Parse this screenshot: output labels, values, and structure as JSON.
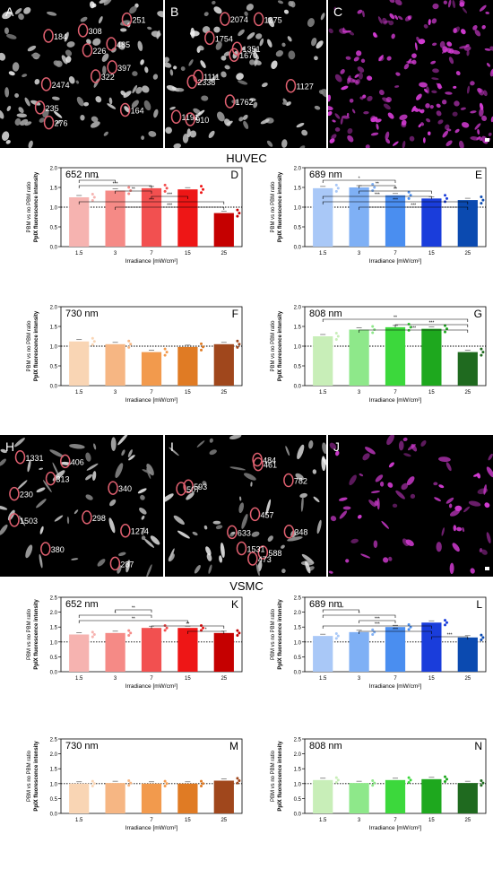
{
  "figure": {
    "top_row": {
      "panels": [
        {
          "letter": "A",
          "ids": [
            "308",
            "226",
            "2474",
            "276",
            "184",
            "397",
            "235",
            "251",
            "485",
            "322",
            "164"
          ]
        },
        {
          "letter": "B",
          "ids": [
            "2074",
            "1351",
            "1127",
            "1191",
            "1754",
            "1111",
            "1762",
            "1275",
            "1670",
            "2338",
            "910"
          ]
        },
        {
          "letter": "C",
          "ids": []
        }
      ],
      "group_label": "HUVEC"
    },
    "bottom_row": {
      "panels": [
        {
          "letter": "H",
          "ids": [
            "406",
            "230",
            "1274",
            "287",
            "313",
            "298",
            "380",
            "1331",
            "340",
            "1503"
          ]
        },
        {
          "letter": "I",
          "ids": [
            "484",
            "593",
            "348",
            "588",
            "782",
            "457",
            "1531",
            "461",
            "507",
            "633",
            "473"
          ]
        },
        {
          "letter": "J",
          "ids": []
        }
      ],
      "group_label": "VSMC"
    },
    "colors": {
      "marker_outline": "#e06070",
      "fluorescence": "#d23bd2"
    }
  },
  "chart_data": [
    {
      "panel": "D",
      "type": "bar",
      "title": "652 nm",
      "categories": [
        "1.5",
        "3",
        "7",
        "15",
        "25"
      ],
      "values": [
        1.25,
        1.42,
        1.48,
        1.45,
        0.85
      ],
      "colors": [
        "#f6b3b0",
        "#f58a86",
        "#f25050",
        "#ee1616",
        "#c50000"
      ],
      "ylim": [
        0,
        2.0
      ],
      "yticks": [
        "0.0",
        "0.5",
        "1.0",
        "1.5",
        "2.0"
      ],
      "ylabel": "PBM vs no PBM ratio",
      "ylabel_bold": "PpIX fluorescence intensity",
      "xlabel": "Irradiance [mW/cm²]",
      "brackets": [
        [
          "1.5",
          "3",
          "**"
        ],
        [
          "1.5",
          "7",
          "***"
        ],
        [
          "3",
          "7",
          "**"
        ],
        [
          "7",
          "15",
          "***"
        ],
        [
          "1.5",
          "25",
          "***"
        ],
        [
          "3",
          "25",
          "***"
        ]
      ]
    },
    {
      "panel": "E",
      "type": "bar",
      "title": "689 nm",
      "categories": [
        "1.5",
        "3",
        "7",
        "15",
        "25"
      ],
      "values": [
        1.48,
        1.5,
        1.3,
        1.22,
        1.18
      ],
      "colors": [
        "#a9c8f7",
        "#7fb0f5",
        "#4a8ef0",
        "#1a3ddb",
        "#0b4ab0"
      ],
      "ylim": [
        0,
        2.0
      ],
      "yticks": [
        "0.0",
        "0.5",
        "1.0",
        "1.5",
        "2.0"
      ],
      "ylabel": "PBM vs no PBM ratio",
      "ylabel_bold": "PpIX fluorescence intensity",
      "xlabel": "Irradiance [mW/cm²]",
      "brackets": [
        [
          "1.5",
          "7",
          "*"
        ],
        [
          "3",
          "7",
          "**"
        ],
        [
          "3",
          "15",
          "**"
        ],
        [
          "1.5",
          "15",
          "***"
        ],
        [
          "1.5",
          "25",
          "***"
        ],
        [
          "3",
          "25",
          "***"
        ]
      ]
    },
    {
      "panel": "F",
      "type": "bar",
      "title": "730 nm",
      "categories": [
        "1.5",
        "3",
        "7",
        "15",
        "25"
      ],
      "values": [
        1.12,
        1.05,
        0.85,
        0.98,
        1.05
      ],
      "colors": [
        "#f9d5b4",
        "#f6b683",
        "#f29a4d",
        "#e07b24",
        "#a0471c"
      ],
      "ylim": [
        0,
        2.0
      ],
      "yticks": [
        "0.0",
        "0.5",
        "1.0",
        "1.5",
        "2.0"
      ],
      "ylabel": "PBM vs no PBM ratio",
      "ylabel_bold": "PpIX fluorescence intensity",
      "xlabel": "Irradiance [mW/cm²]",
      "brackets": []
    },
    {
      "panel": "G",
      "type": "bar",
      "title": "808 nm",
      "categories": [
        "1.5",
        "3",
        "7",
        "15",
        "25"
      ],
      "values": [
        1.25,
        1.42,
        1.48,
        1.44,
        0.85
      ],
      "colors": [
        "#c8eeb8",
        "#8ee88a",
        "#3cd83c",
        "#1ea81e",
        "#1f6a1f"
      ],
      "ylim": [
        0,
        2.0
      ],
      "yticks": [
        "0.0",
        "0.5",
        "1.0",
        "1.5",
        "2.0"
      ],
      "ylabel": "PBM vs no PBM ratio",
      "ylabel_bold": "PpIX fluorescence intensity",
      "xlabel": "Irradiance [mW/cm²]",
      "brackets": [
        [
          "1.5",
          "25",
          "**"
        ],
        [
          "7",
          "25",
          "***"
        ],
        [
          "3",
          "25",
          "***"
        ]
      ]
    },
    {
      "panel": "K",
      "type": "bar",
      "title": "652 nm",
      "categories": [
        "1.5",
        "3",
        "7",
        "15",
        "25"
      ],
      "values": [
        1.25,
        1.3,
        1.47,
        1.47,
        1.3
      ],
      "colors": [
        "#f6b3b0",
        "#f58a86",
        "#f25050",
        "#ee1616",
        "#c50000"
      ],
      "ylim": [
        0,
        2.5
      ],
      "yticks": [
        "0.0",
        "0.5",
        "1.0",
        "1.5",
        "2.0",
        "2.5"
      ],
      "ylabel": "PBM vs no PBM ratio",
      "ylabel_bold": "PpIX fluorescence intensity",
      "xlabel": "Irradiance [mW/cm²]",
      "brackets": [
        [
          "3",
          "7",
          "**"
        ],
        [
          "1.5",
          "7",
          "*"
        ],
        [
          "1.5",
          "15",
          "**"
        ],
        [
          "7",
          "25",
          "**"
        ],
        [
          "15",
          "25",
          "*"
        ]
      ]
    },
    {
      "panel": "L",
      "type": "bar",
      "title": "689 nm",
      "categories": [
        "1.5",
        "3",
        "7",
        "15",
        "25"
      ],
      "values": [
        1.2,
        1.33,
        1.5,
        1.65,
        1.15
      ],
      "colors": [
        "#a9c8f7",
        "#7fb0f5",
        "#4a8ef0",
        "#1a3ddb",
        "#0b4ab0"
      ],
      "ylim": [
        0,
        2.5
      ],
      "yticks": [
        "0.0",
        "0.5",
        "1.0",
        "1.5",
        "2.0",
        "2.5"
      ],
      "ylabel": "PBM vs no PBM ratio",
      "ylabel_bold": "PpIX fluorescence intensity",
      "xlabel": "Irradiance [mW/cm²]",
      "brackets": [
        [
          "1.5",
          "3",
          "***"
        ],
        [
          "1.5",
          "7",
          "*"
        ],
        [
          "3",
          "7",
          "***"
        ],
        [
          "1.5",
          "15",
          "***"
        ],
        [
          "3",
          "15",
          "***"
        ],
        [
          "15",
          "25",
          "***"
        ]
      ]
    },
    {
      "panel": "M",
      "type": "bar",
      "title": "730 nm",
      "categories": [
        "1.5",
        "",
        "7",
        "15",
        "25"
      ],
      "values": [
        1.0,
        1.02,
        1.0,
        1.0,
        1.1
      ],
      "colors": [
        "#f9d5b4",
        "#f6b683",
        "#f29a4d",
        "#e07b24",
        "#a0471c"
      ],
      "ylim": [
        0,
        2.5
      ],
      "yticks": [
        "0.0",
        "0.5",
        "1.0",
        "1.5",
        "2.0",
        "2.5"
      ],
      "ylabel": "PBM vs no PBM ratio",
      "ylabel_bold": "PpIX fluorescence intensity",
      "xlabel": "Irradiance [mW/cm²]",
      "brackets": []
    },
    {
      "panel": "N",
      "type": "bar",
      "title": "808 nm",
      "categories": [
        "1.5",
        "3",
        "7",
        "15",
        "25"
      ],
      "values": [
        1.12,
        1.02,
        1.12,
        1.15,
        1.02
      ],
      "colors": [
        "#c8eeb8",
        "#8ee88a",
        "#3cd83c",
        "#1ea81e",
        "#1f6a1f"
      ],
      "ylim": [
        0,
        2.5
      ],
      "yticks": [
        "0.0",
        "0.5",
        "1.0",
        "1.5",
        "2.0",
        "2.5"
      ],
      "ylabel": "PBM vs no PBM ratio",
      "ylabel_bold": "PpIX fluorescence intensity",
      "xlabel": "Irradiance [mW/cm²]",
      "brackets": []
    }
  ]
}
